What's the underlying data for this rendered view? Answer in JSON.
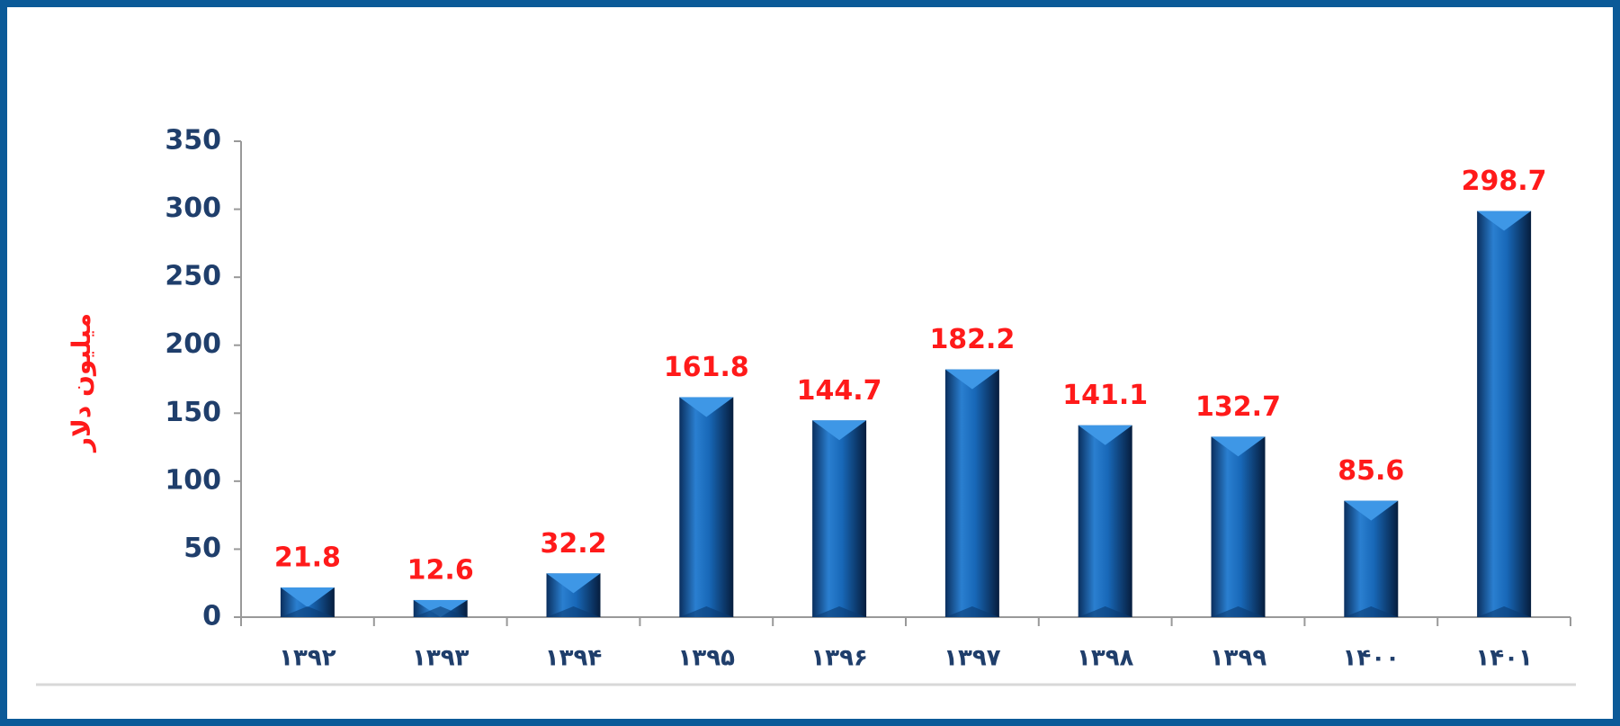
{
  "chart_data": {
    "type": "bar",
    "y_label": "میلیون دلار",
    "categories": [
      "۱۳۹۲",
      "۱۳۹۳",
      "۱۳۹۴",
      "۱۳۹۵",
      "۱۳۹۶",
      "۱۳۹۷",
      "۱۳۹۸",
      "۱۳۹۹",
      "۱۴۰۰",
      "۱۴۰۱"
    ],
    "values": [
      21.8,
      12.6,
      32.2,
      161.8,
      144.7,
      182.2,
      141.1,
      132.7,
      85.6,
      298.7
    ],
    "color": "#0e5aa8",
    "ylim": [
      0,
      350
    ],
    "yticks": [
      0,
      50,
      100,
      150,
      200,
      250,
      300,
      350
    ],
    "grid": false
  }
}
